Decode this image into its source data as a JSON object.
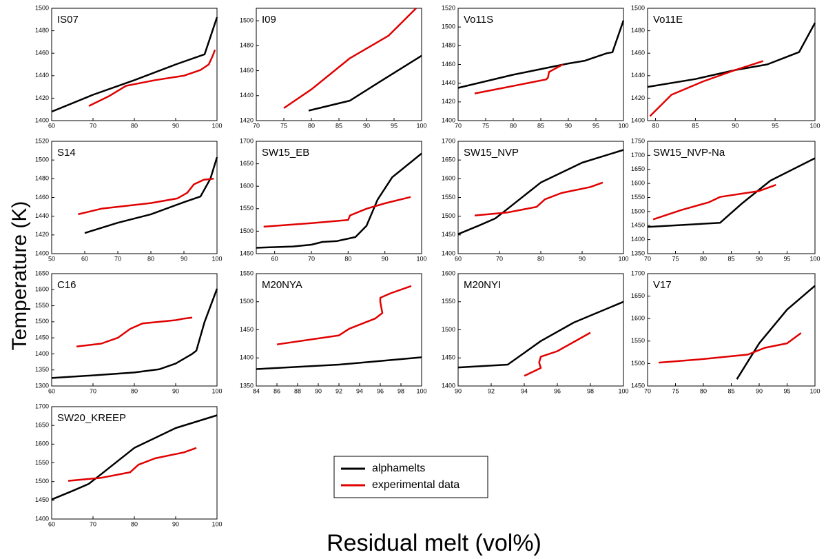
{
  "xlabel": "Residual melt (vol%)",
  "ylabel": "Temperature (K)",
  "legend": {
    "series": [
      {
        "name": "alphamelts",
        "color": "#000000"
      },
      {
        "name": "experimental data",
        "color": "#e00000"
      }
    ]
  },
  "chart_data": [
    {
      "type": "line",
      "title": "IS07",
      "xlim": [
        60,
        100
      ],
      "xticks": [
        60,
        70,
        80,
        90,
        100
      ],
      "ylim": [
        1400,
        1500
      ],
      "yticks": [
        1400,
        1420,
        1440,
        1460,
        1480,
        1500
      ],
      "series": [
        {
          "x": [
            60,
            70,
            80,
            90,
            97,
            100
          ],
          "values": [
            1408,
            1423,
            1436,
            1450,
            1459,
            1492
          ]
        },
        {
          "x": [
            69,
            74,
            78,
            85,
            92,
            96,
            98,
            99,
            99.5
          ],
          "values": [
            1413,
            1422,
            1431,
            1436,
            1440,
            1445,
            1450,
            1458,
            1463
          ]
        }
      ]
    },
    {
      "type": "line",
      "title": "I09",
      "xlim": [
        70,
        100
      ],
      "xticks": [
        70,
        75,
        80,
        85,
        90,
        95,
        100
      ],
      "ylim": [
        1420,
        1510
      ],
      "yticks": [
        1420,
        1440,
        1460,
        1480,
        1500
      ],
      "series": [
        {
          "x": [
            79.5,
            87,
            92,
            100
          ],
          "values": [
            1428,
            1436,
            1450,
            1472
          ]
        },
        {
          "x": [
            75,
            80,
            87,
            94,
            99
          ],
          "values": [
            1430,
            1445,
            1470,
            1488,
            1510
          ]
        }
      ]
    },
    {
      "type": "line",
      "title": "Vo11S",
      "xlim": [
        70,
        100
      ],
      "xticks": [
        70,
        75,
        80,
        85,
        90,
        95,
        100
      ],
      "ylim": [
        1400,
        1520
      ],
      "yticks": [
        1400,
        1420,
        1440,
        1460,
        1480,
        1500,
        1520
      ],
      "series": [
        {
          "x": [
            70,
            80,
            90,
            93,
            97,
            98,
            100
          ],
          "values": [
            1435,
            1449,
            1461,
            1464,
            1472,
            1473,
            1507
          ]
        },
        {
          "x": [
            73,
            80,
            86,
            86.3,
            86.5,
            89
          ],
          "values": [
            1429,
            1437,
            1444,
            1446,
            1452,
            1460
          ]
        }
      ]
    },
    {
      "type": "line",
      "title": "Vo11E",
      "xlim": [
        79,
        100
      ],
      "xticks": [
        80,
        85,
        90,
        95,
        100
      ],
      "ylim": [
        1400,
        1500
      ],
      "yticks": [
        1400,
        1420,
        1440,
        1460,
        1480,
        1500
      ],
      "series": [
        {
          "x": [
            79,
            85,
            90,
            94,
            98,
            100
          ],
          "values": [
            1430,
            1437,
            1445,
            1450,
            1461,
            1487
          ]
        },
        {
          "x": [
            79.3,
            82,
            86,
            90,
            93.5
          ],
          "values": [
            1404,
            1423,
            1435,
            1445,
            1453
          ]
        }
      ]
    },
    {
      "type": "line",
      "title": "S14",
      "xlim": [
        50,
        100
      ],
      "xticks": [
        50,
        60,
        70,
        80,
        90,
        100
      ],
      "ylim": [
        1400,
        1520
      ],
      "yticks": [
        1400,
        1420,
        1440,
        1460,
        1480,
        1500,
        1520
      ],
      "series": [
        {
          "x": [
            60,
            70,
            80,
            90,
            95,
            98,
            100
          ],
          "values": [
            1422,
            1433,
            1442,
            1455,
            1461,
            1480,
            1503
          ]
        },
        {
          "x": [
            58,
            65,
            80,
            88,
            91,
            93,
            96,
            99
          ],
          "values": [
            1442,
            1448,
            1454,
            1459,
            1465,
            1474,
            1479,
            1480
          ]
        }
      ]
    },
    {
      "type": "line",
      "title": "SW15_EB",
      "xlim": [
        55,
        100
      ],
      "xticks": [
        60,
        70,
        80,
        90,
        100
      ],
      "ylim": [
        1450,
        1700
      ],
      "yticks": [
        1450,
        1500,
        1550,
        1600,
        1650,
        1700
      ],
      "series": [
        {
          "x": [
            55,
            65,
            70,
            73,
            77,
            82,
            85,
            88,
            92,
            100
          ],
          "values": [
            1463,
            1466,
            1470,
            1476,
            1478,
            1487,
            1512,
            1570,
            1620,
            1673
          ]
        },
        {
          "x": [
            57,
            70,
            80,
            80.5,
            85,
            90,
            97
          ],
          "values": [
            1510,
            1518,
            1525,
            1535,
            1550,
            1562,
            1576
          ]
        }
      ]
    },
    {
      "type": "line",
      "title": "SW15_NVP",
      "xlim": [
        60,
        100
      ],
      "xticks": [
        60,
        70,
        80,
        90,
        100
      ],
      "ylim": [
        1400,
        1700
      ],
      "yticks": [
        1400,
        1450,
        1500,
        1550,
        1600,
        1650,
        1700
      ],
      "series": [
        {
          "x": [
            60,
            65,
            69,
            72,
            80,
            90,
            100
          ],
          "values": [
            1452,
            1475,
            1494,
            1520,
            1590,
            1643,
            1677
          ]
        },
        {
          "x": [
            64,
            72,
            79,
            81,
            85,
            92,
            95
          ],
          "values": [
            1502,
            1510,
            1525,
            1545,
            1562,
            1578,
            1590
          ]
        }
      ]
    },
    {
      "type": "line",
      "title": "SW15_NVP-Na",
      "xlim": [
        70,
        100
      ],
      "xticks": [
        70,
        75,
        80,
        85,
        90,
        95,
        100
      ],
      "ylim": [
        1350,
        1750
      ],
      "yticks": [
        1350,
        1400,
        1450,
        1500,
        1550,
        1600,
        1650,
        1700,
        1750
      ],
      "series": [
        {
          "x": [
            70,
            83,
            87,
            92,
            100
          ],
          "values": [
            1445,
            1460,
            1530,
            1610,
            1690
          ]
        },
        {
          "x": [
            71,
            76,
            81,
            83,
            90,
            93
          ],
          "values": [
            1472,
            1505,
            1533,
            1552,
            1573,
            1595
          ]
        }
      ]
    },
    {
      "type": "line",
      "title": "C16",
      "xlim": [
        60,
        100
      ],
      "xticks": [
        60,
        70,
        80,
        90,
        100
      ],
      "ylim": [
        1300,
        1650
      ],
      "yticks": [
        1300,
        1350,
        1400,
        1450,
        1500,
        1550,
        1600,
        1650
      ],
      "series": [
        {
          "x": [
            60,
            70,
            80,
            86,
            90,
            94,
            95,
            97,
            100
          ],
          "values": [
            1325,
            1333,
            1342,
            1352,
            1370,
            1400,
            1410,
            1500,
            1603
          ]
        },
        {
          "x": [
            66,
            72,
            76,
            79,
            82,
            90,
            92,
            94
          ],
          "values": [
            1423,
            1432,
            1450,
            1478,
            1495,
            1505,
            1510,
            1513
          ]
        }
      ]
    },
    {
      "type": "line",
      "title": "M20NYA",
      "xlim": [
        84,
        100
      ],
      "xticks": [
        84,
        86,
        88,
        90,
        92,
        94,
        96,
        98,
        100
      ],
      "ylim": [
        1350,
        1550
      ],
      "yticks": [
        1350,
        1400,
        1450,
        1500,
        1550
      ],
      "series": [
        {
          "x": [
            84,
            92,
            100
          ],
          "values": [
            1380,
            1388,
            1401
          ]
        },
        {
          "x": [
            86,
            92,
            93,
            95.5,
            96.2,
            96,
            96,
            97,
            99
          ],
          "values": [
            1424,
            1440,
            1452,
            1470,
            1480,
            1500,
            1507,
            1515,
            1528
          ]
        }
      ]
    },
    {
      "type": "line",
      "title": "M20NYI",
      "xlim": [
        90,
        100
      ],
      "xticks": [
        90,
        92,
        94,
        96,
        98,
        100
      ],
      "ylim": [
        1400,
        1600
      ],
      "yticks": [
        1400,
        1450,
        1500,
        1550,
        1600
      ],
      "series": [
        {
          "x": [
            90,
            93,
            95,
            97,
            100
          ],
          "values": [
            1433,
            1438,
            1480,
            1513,
            1550
          ]
        },
        {
          "x": [
            94,
            95,
            94.9,
            95,
            96,
            98
          ],
          "values": [
            1418,
            1432,
            1442,
            1452,
            1462,
            1495
          ]
        }
      ]
    },
    {
      "type": "line",
      "title": "V17",
      "xlim": [
        70,
        100
      ],
      "xticks": [
        70,
        75,
        80,
        85,
        90,
        95,
        100
      ],
      "ylim": [
        1450,
        1700
      ],
      "yticks": [
        1450,
        1500,
        1550,
        1600,
        1650,
        1700
      ],
      "series": [
        {
          "x": [
            86,
            90,
            95,
            100
          ],
          "values": [
            1465,
            1545,
            1620,
            1673
          ]
        },
        {
          "x": [
            72,
            80,
            88,
            91,
            95,
            97.5
          ],
          "values": [
            1502,
            1510,
            1520,
            1535,
            1545,
            1568
          ]
        }
      ]
    },
    {
      "type": "line",
      "title": "SW20_KREEP",
      "xlim": [
        60,
        100
      ],
      "xticks": [
        60,
        70,
        80,
        90,
        100
      ],
      "ylim": [
        1400,
        1700
      ],
      "yticks": [
        1400,
        1450,
        1500,
        1550,
        1600,
        1650,
        1700
      ],
      "series": [
        {
          "x": [
            60,
            65,
            69,
            72,
            80,
            90,
            100
          ],
          "values": [
            1452,
            1475,
            1494,
            1520,
            1590,
            1643,
            1677
          ]
        },
        {
          "x": [
            64,
            72,
            79,
            81,
            85,
            92,
            95
          ],
          "values": [
            1502,
            1510,
            1525,
            1545,
            1562,
            1578,
            1590
          ]
        }
      ]
    }
  ]
}
